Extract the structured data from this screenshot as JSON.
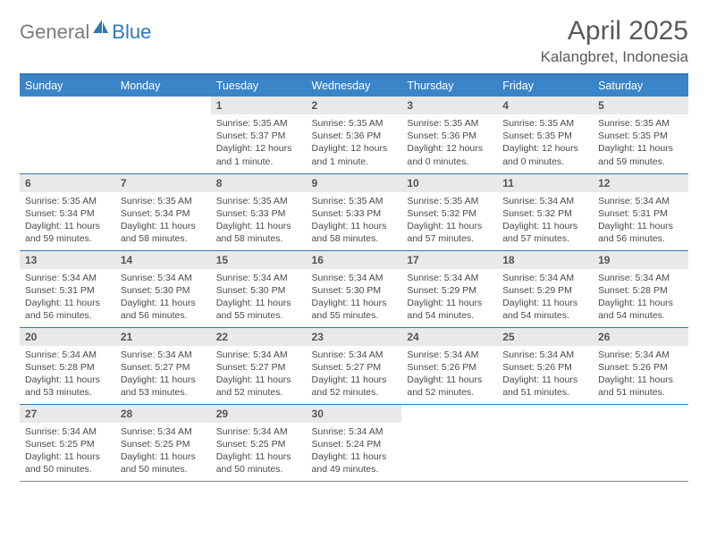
{
  "logo": {
    "word1": "General",
    "word2": "Blue"
  },
  "title": "April 2025",
  "location": "Kalangbret, Indonesia",
  "colors": {
    "header_bg": "#3a84c8",
    "header_text": "#ffffff",
    "rule": "#2f78bd",
    "daynum_bg": "#e9e9e9",
    "body_text": "#4a4a4a",
    "title_text": "#5a5a5a",
    "logo_gray": "#7b7b7b",
    "logo_blue": "#2f78bd"
  },
  "weekdays": [
    "Sunday",
    "Monday",
    "Tuesday",
    "Wednesday",
    "Thursday",
    "Friday",
    "Saturday"
  ],
  "weeks": [
    [
      {
        "day": "",
        "sunrise": "",
        "sunset": "",
        "daylight": ""
      },
      {
        "day": "",
        "sunrise": "",
        "sunset": "",
        "daylight": ""
      },
      {
        "day": "1",
        "sunrise": "Sunrise: 5:35 AM",
        "sunset": "Sunset: 5:37 PM",
        "daylight": "Daylight: 12 hours and 1 minute."
      },
      {
        "day": "2",
        "sunrise": "Sunrise: 5:35 AM",
        "sunset": "Sunset: 5:36 PM",
        "daylight": "Daylight: 12 hours and 1 minute."
      },
      {
        "day": "3",
        "sunrise": "Sunrise: 5:35 AM",
        "sunset": "Sunset: 5:36 PM",
        "daylight": "Daylight: 12 hours and 0 minutes."
      },
      {
        "day": "4",
        "sunrise": "Sunrise: 5:35 AM",
        "sunset": "Sunset: 5:35 PM",
        "daylight": "Daylight: 12 hours and 0 minutes."
      },
      {
        "day": "5",
        "sunrise": "Sunrise: 5:35 AM",
        "sunset": "Sunset: 5:35 PM",
        "daylight": "Daylight: 11 hours and 59 minutes."
      }
    ],
    [
      {
        "day": "6",
        "sunrise": "Sunrise: 5:35 AM",
        "sunset": "Sunset: 5:34 PM",
        "daylight": "Daylight: 11 hours and 59 minutes."
      },
      {
        "day": "7",
        "sunrise": "Sunrise: 5:35 AM",
        "sunset": "Sunset: 5:34 PM",
        "daylight": "Daylight: 11 hours and 58 minutes."
      },
      {
        "day": "8",
        "sunrise": "Sunrise: 5:35 AM",
        "sunset": "Sunset: 5:33 PM",
        "daylight": "Daylight: 11 hours and 58 minutes."
      },
      {
        "day": "9",
        "sunrise": "Sunrise: 5:35 AM",
        "sunset": "Sunset: 5:33 PM",
        "daylight": "Daylight: 11 hours and 58 minutes."
      },
      {
        "day": "10",
        "sunrise": "Sunrise: 5:35 AM",
        "sunset": "Sunset: 5:32 PM",
        "daylight": "Daylight: 11 hours and 57 minutes."
      },
      {
        "day": "11",
        "sunrise": "Sunrise: 5:34 AM",
        "sunset": "Sunset: 5:32 PM",
        "daylight": "Daylight: 11 hours and 57 minutes."
      },
      {
        "day": "12",
        "sunrise": "Sunrise: 5:34 AM",
        "sunset": "Sunset: 5:31 PM",
        "daylight": "Daylight: 11 hours and 56 minutes."
      }
    ],
    [
      {
        "day": "13",
        "sunrise": "Sunrise: 5:34 AM",
        "sunset": "Sunset: 5:31 PM",
        "daylight": "Daylight: 11 hours and 56 minutes."
      },
      {
        "day": "14",
        "sunrise": "Sunrise: 5:34 AM",
        "sunset": "Sunset: 5:30 PM",
        "daylight": "Daylight: 11 hours and 56 minutes."
      },
      {
        "day": "15",
        "sunrise": "Sunrise: 5:34 AM",
        "sunset": "Sunset: 5:30 PM",
        "daylight": "Daylight: 11 hours and 55 minutes."
      },
      {
        "day": "16",
        "sunrise": "Sunrise: 5:34 AM",
        "sunset": "Sunset: 5:30 PM",
        "daylight": "Daylight: 11 hours and 55 minutes."
      },
      {
        "day": "17",
        "sunrise": "Sunrise: 5:34 AM",
        "sunset": "Sunset: 5:29 PM",
        "daylight": "Daylight: 11 hours and 54 minutes."
      },
      {
        "day": "18",
        "sunrise": "Sunrise: 5:34 AM",
        "sunset": "Sunset: 5:29 PM",
        "daylight": "Daylight: 11 hours and 54 minutes."
      },
      {
        "day": "19",
        "sunrise": "Sunrise: 5:34 AM",
        "sunset": "Sunset: 5:28 PM",
        "daylight": "Daylight: 11 hours and 54 minutes."
      }
    ],
    [
      {
        "day": "20",
        "sunrise": "Sunrise: 5:34 AM",
        "sunset": "Sunset: 5:28 PM",
        "daylight": "Daylight: 11 hours and 53 minutes."
      },
      {
        "day": "21",
        "sunrise": "Sunrise: 5:34 AM",
        "sunset": "Sunset: 5:27 PM",
        "daylight": "Daylight: 11 hours and 53 minutes."
      },
      {
        "day": "22",
        "sunrise": "Sunrise: 5:34 AM",
        "sunset": "Sunset: 5:27 PM",
        "daylight": "Daylight: 11 hours and 52 minutes."
      },
      {
        "day": "23",
        "sunrise": "Sunrise: 5:34 AM",
        "sunset": "Sunset: 5:27 PM",
        "daylight": "Daylight: 11 hours and 52 minutes."
      },
      {
        "day": "24",
        "sunrise": "Sunrise: 5:34 AM",
        "sunset": "Sunset: 5:26 PM",
        "daylight": "Daylight: 11 hours and 52 minutes."
      },
      {
        "day": "25",
        "sunrise": "Sunrise: 5:34 AM",
        "sunset": "Sunset: 5:26 PM",
        "daylight": "Daylight: 11 hours and 51 minutes."
      },
      {
        "day": "26",
        "sunrise": "Sunrise: 5:34 AM",
        "sunset": "Sunset: 5:26 PM",
        "daylight": "Daylight: 11 hours and 51 minutes."
      }
    ],
    [
      {
        "day": "27",
        "sunrise": "Sunrise: 5:34 AM",
        "sunset": "Sunset: 5:25 PM",
        "daylight": "Daylight: 11 hours and 50 minutes."
      },
      {
        "day": "28",
        "sunrise": "Sunrise: 5:34 AM",
        "sunset": "Sunset: 5:25 PM",
        "daylight": "Daylight: 11 hours and 50 minutes."
      },
      {
        "day": "29",
        "sunrise": "Sunrise: 5:34 AM",
        "sunset": "Sunset: 5:25 PM",
        "daylight": "Daylight: 11 hours and 50 minutes."
      },
      {
        "day": "30",
        "sunrise": "Sunrise: 5:34 AM",
        "sunset": "Sunset: 5:24 PM",
        "daylight": "Daylight: 11 hours and 49 minutes."
      },
      {
        "day": "",
        "sunrise": "",
        "sunset": "",
        "daylight": ""
      },
      {
        "day": "",
        "sunrise": "",
        "sunset": "",
        "daylight": ""
      },
      {
        "day": "",
        "sunrise": "",
        "sunset": "",
        "daylight": ""
      }
    ]
  ]
}
